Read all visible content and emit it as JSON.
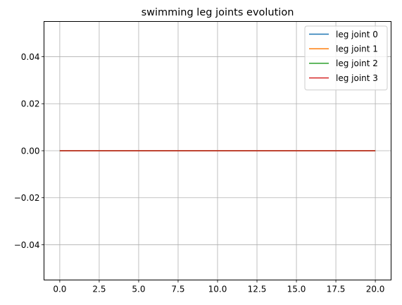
{
  "chart_data": {
    "type": "line",
    "title": "swimming leg joints evolution",
    "xlabel": "",
    "ylabel": "",
    "xlim": [
      -1.0,
      21.0
    ],
    "ylim": [
      -0.055,
      0.055
    ],
    "grid": true,
    "legend_position": "top-right",
    "x_ticks": [
      0.0,
      2.5,
      5.0,
      7.5,
      10.0,
      12.5,
      15.0,
      17.5,
      20.0
    ],
    "x_tick_labels": [
      "0.0",
      "2.5",
      "5.0",
      "7.5",
      "10.0",
      "12.5",
      "15.0",
      "17.5",
      "20.0"
    ],
    "y_ticks": [
      -0.04,
      -0.02,
      0.0,
      0.02,
      0.04
    ],
    "y_tick_labels": [
      "−0.04",
      "−0.02",
      "0.00",
      "0.02",
      "0.04"
    ],
    "series": [
      {
        "name": "leg joint 0",
        "color": "#1f77b4",
        "x": [
          0,
          20
        ],
        "y": [
          0,
          0
        ]
      },
      {
        "name": "leg joint 1",
        "color": "#ff7f0e",
        "x": [
          0,
          20
        ],
        "y": [
          0,
          0
        ]
      },
      {
        "name": "leg joint 2",
        "color": "#2ca02c",
        "x": [
          0,
          20
        ],
        "y": [
          0,
          0
        ]
      },
      {
        "name": "leg joint 3",
        "color": "#d62728",
        "x": [
          0,
          20
        ],
        "y": [
          0,
          0
        ]
      }
    ]
  }
}
